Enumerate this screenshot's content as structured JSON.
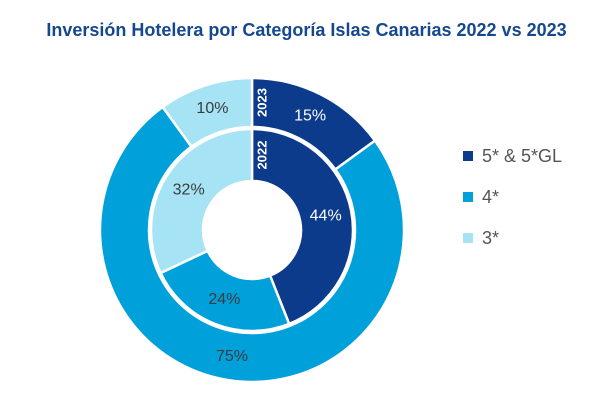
{
  "chart_data": {
    "type": "pie",
    "title": "Inversión Hotelera por Categoría Islas Canarias 2022 vs 2023",
    "categories": [
      "5* & 5*GL",
      "4*",
      "3*"
    ],
    "colors": [
      "#0d3b8c",
      "#00a0db",
      "#a5e3f5"
    ],
    "series": [
      {
        "name": "2022",
        "values": [
          44,
          24,
          32
        ],
        "labels": [
          "44%",
          "24%",
          "32%"
        ]
      },
      {
        "name": "2023",
        "values": [
          15,
          75,
          10
        ],
        "labels": [
          "15%",
          "75%",
          "10%"
        ]
      }
    ],
    "legend_position": "right"
  }
}
